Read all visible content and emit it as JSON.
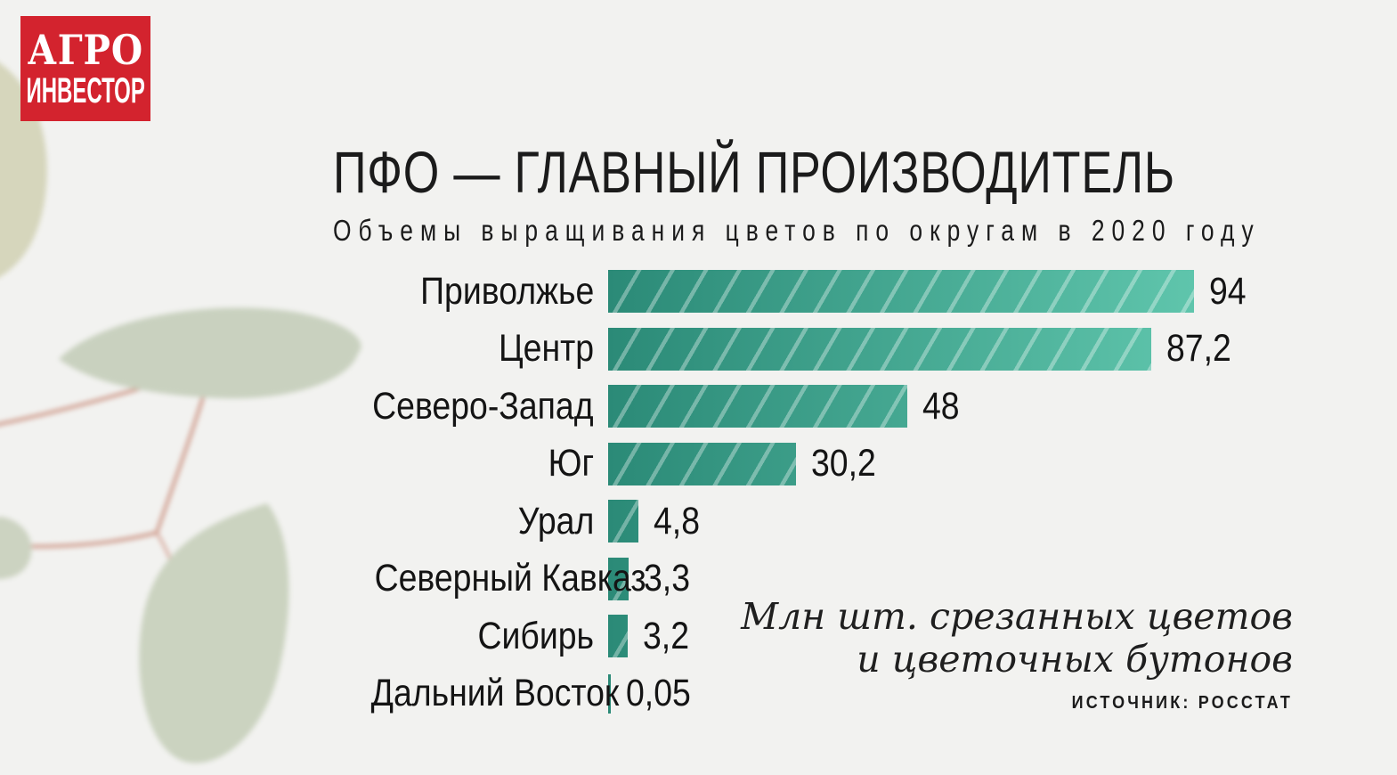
{
  "logo": {
    "line1": "АГРО",
    "line2": "ИНВЕСТОР",
    "bg_color": "#d3232e",
    "text_color": "#ffffff"
  },
  "header": {
    "title": "ПФО — ГЛАВНЫЙ ПРОИЗВОДИТЕЛЬ",
    "subtitle": "Объемы выращивания цветов по округам в 2020 году"
  },
  "chart_data": {
    "type": "bar",
    "orientation": "horizontal",
    "categories": [
      "Приволжье",
      "Центр",
      "Северо-Запад",
      "Юг",
      "Урал",
      "Северный Кавказ",
      "Сибирь",
      "Дальний Восток"
    ],
    "values": [
      94,
      87.2,
      48,
      30.2,
      4.8,
      3.3,
      3.2,
      0.05
    ],
    "value_labels": [
      "94",
      "87,2",
      "48",
      "30,2",
      "4,8",
      "3,3",
      "3,2",
      "0,05"
    ],
    "title": "ПФО — ГЛАВНЫЙ ПРОИЗВОДИТЕЛЬ",
    "subtitle": "Объемы выращивания цветов по округам в 2020 году",
    "unit": "Млн шт. срезанных цветов и цветочных бутонов",
    "xlim": [
      0,
      94
    ],
    "grid": false,
    "legend": "none",
    "value_label_position": "end-of-bar",
    "bar_style": {
      "gradient_start": "#2b8a77",
      "gradient_end": "#5fc5ac",
      "hatch": "diagonal-light-stripes"
    }
  },
  "note": {
    "line1": "Млн шт. срезанных цветов",
    "line2": "и цветочных бутонов"
  },
  "source": {
    "label": "ИСТОЧНИК: РОССТАТ"
  },
  "colors": {
    "background": "#f2f2f0",
    "text": "#1b1b1b",
    "logo_red": "#d3232e",
    "leaf_green": "#c9d1bf",
    "leaf_yellow": "#d6d6bc",
    "stem_pink": "#cf9b8c"
  }
}
